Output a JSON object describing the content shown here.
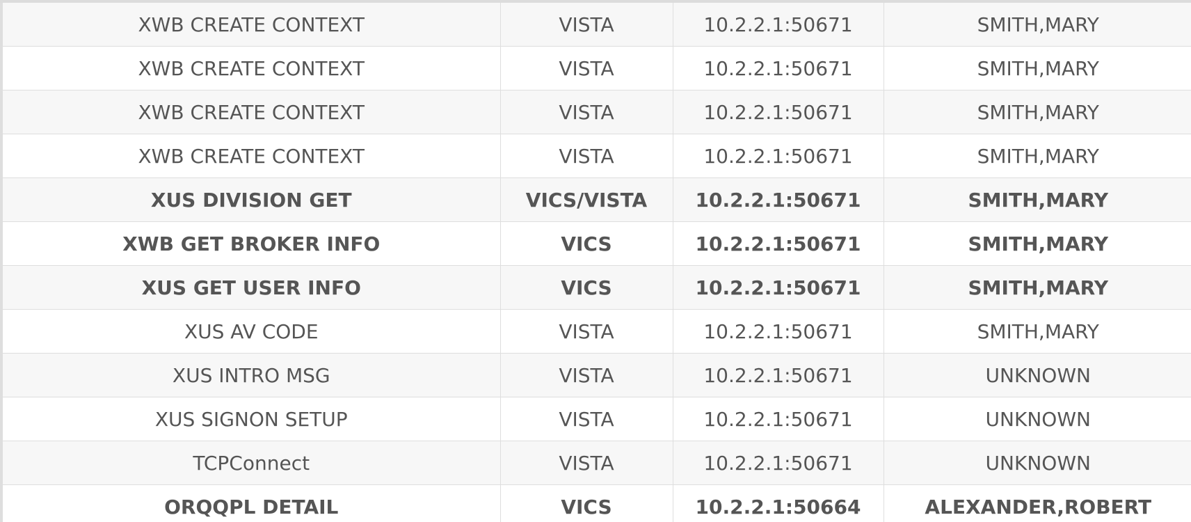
{
  "table": {
    "rows": [
      {
        "rpc": "XWB CREATE CONTEXT",
        "context": "VISTA",
        "address": "10.2.2.1:50671",
        "user": "SMITH,MARY",
        "emphasis": false
      },
      {
        "rpc": "XWB CREATE CONTEXT",
        "context": "VISTA",
        "address": "10.2.2.1:50671",
        "user": "SMITH,MARY",
        "emphasis": false
      },
      {
        "rpc": "XWB CREATE CONTEXT",
        "context": "VISTA",
        "address": "10.2.2.1:50671",
        "user": "SMITH,MARY",
        "emphasis": false
      },
      {
        "rpc": "XWB CREATE CONTEXT",
        "context": "VISTA",
        "address": "10.2.2.1:50671",
        "user": "SMITH,MARY",
        "emphasis": false
      },
      {
        "rpc": "XUS DIVISION GET",
        "context": "VICS/VISTA",
        "address": "10.2.2.1:50671",
        "user": "SMITH,MARY",
        "emphasis": true
      },
      {
        "rpc": "XWB GET BROKER INFO",
        "context": "VICS",
        "address": "10.2.2.1:50671",
        "user": "SMITH,MARY",
        "emphasis": true
      },
      {
        "rpc": "XUS GET USER INFO",
        "context": "VICS",
        "address": "10.2.2.1:50671",
        "user": "SMITH,MARY",
        "emphasis": true
      },
      {
        "rpc": "XUS AV CODE",
        "context": "VISTA",
        "address": "10.2.2.1:50671",
        "user": "SMITH,MARY",
        "emphasis": false
      },
      {
        "rpc": "XUS INTRO MSG",
        "context": "VISTA",
        "address": "10.2.2.1:50671",
        "user": "UNKNOWN",
        "emphasis": false
      },
      {
        "rpc": "XUS SIGNON SETUP",
        "context": "VISTA",
        "address": "10.2.2.1:50671",
        "user": "UNKNOWN",
        "emphasis": false
      },
      {
        "rpc": "TCPConnect",
        "context": "VISTA",
        "address": "10.2.2.1:50671",
        "user": "UNKNOWN",
        "emphasis": false
      },
      {
        "rpc": "ORQQPL DETAIL",
        "context": "VICS",
        "address": "10.2.2.1:50664",
        "user": "ALEXANDER,ROBERT",
        "emphasis": true
      }
    ]
  },
  "colors": {
    "stripe": "#f7f7f7",
    "background": "#ffffff",
    "text": "#555555",
    "border": "#dedede"
  }
}
